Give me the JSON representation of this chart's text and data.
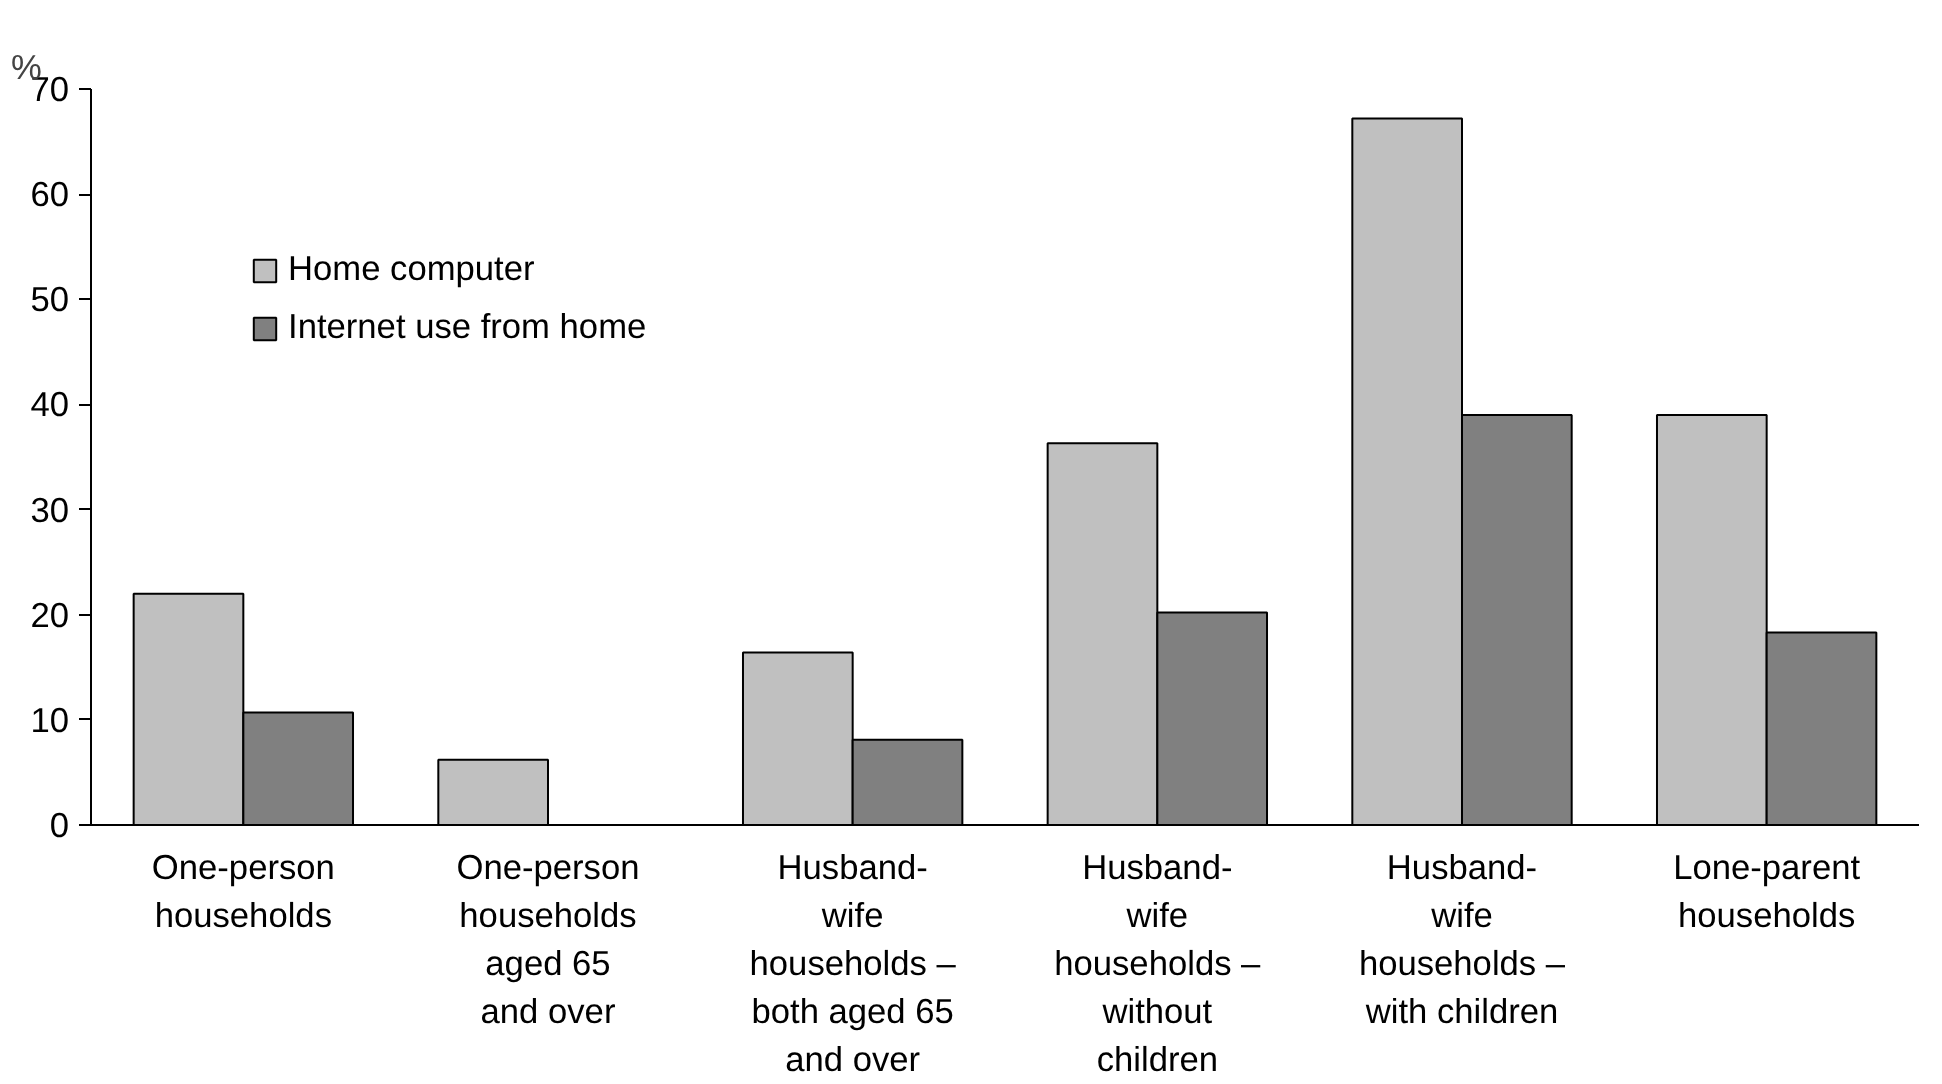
{
  "chart_data": {
    "type": "bar",
    "ylabel": "%",
    "categories": [
      "One-person\nhouseholds",
      "One-person\nhouseholds\naged 65\nand over",
      "Husband-\nwife\nhouseholds –\nboth aged 65\nand over",
      "Husband-\nwife\nhouseholds –\nwithout\nchildren",
      "Husband-\nwife\nhouseholds –\nwith children",
      "Lone-parent\nhouseholds"
    ],
    "series": [
      {
        "name": "Home computer",
        "color": "#c0c0c0",
        "values": [
          22,
          6.2,
          16.4,
          36.3,
          67.2,
          39.0
        ]
      },
      {
        "name": "Internet use from home",
        "color": "#808080",
        "values": [
          10.7,
          null,
          8.1,
          20.2,
          39.0,
          18.3
        ]
      }
    ],
    "ylim": [
      0,
      70
    ],
    "yticks": [
      0,
      10,
      20,
      30,
      40,
      50,
      60,
      70
    ],
    "grid": false,
    "legend": "top left"
  }
}
